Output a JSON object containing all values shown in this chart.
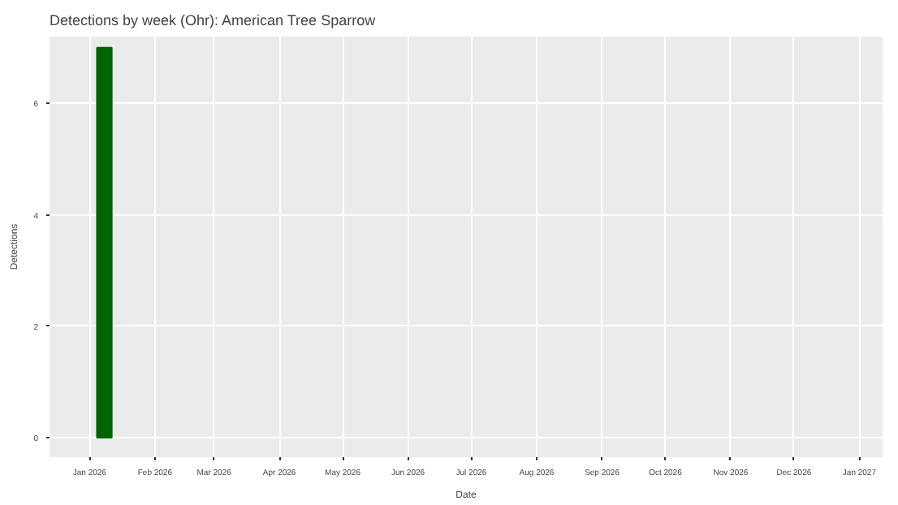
{
  "chart_data": {
    "type": "bar",
    "title": "Detections by week (Ohr): American Tree Sparrow",
    "xlabel": "Date",
    "ylabel": "Detections",
    "x": [
      "2026-01-08"
    ],
    "series": [
      {
        "color": "#006400",
        "values": [
          7
        ]
      }
    ],
    "xlim": [
      "2025-12-13",
      "2027-01-12"
    ],
    "xticks": [
      {
        "value": "2026-01-01",
        "label": "Jan 2026"
      },
      {
        "value": "2026-02-01",
        "label": "Feb 2026"
      },
      {
        "value": "2026-03-01",
        "label": "Mar 2026"
      },
      {
        "value": "2026-04-01",
        "label": "Apr 2026"
      },
      {
        "value": "2026-05-01",
        "label": "May 2026"
      },
      {
        "value": "2026-06-01",
        "label": "Jun 2026"
      },
      {
        "value": "2026-07-01",
        "label": "Jul 2026"
      },
      {
        "value": "2026-08-01",
        "label": "Aug 2026"
      },
      {
        "value": "2026-09-01",
        "label": "Sep 2026"
      },
      {
        "value": "2026-10-01",
        "label": "Oct 2026"
      },
      {
        "value": "2026-11-01",
        "label": "Nov 2026"
      },
      {
        "value": "2026-12-01",
        "label": "Dec 2026"
      },
      {
        "value": "2027-01-01",
        "label": "Jan 2027"
      }
    ],
    "ylim": [
      -0.35,
      7.2
    ],
    "yticks": [
      0,
      2,
      4,
      6
    ],
    "grid": true
  }
}
